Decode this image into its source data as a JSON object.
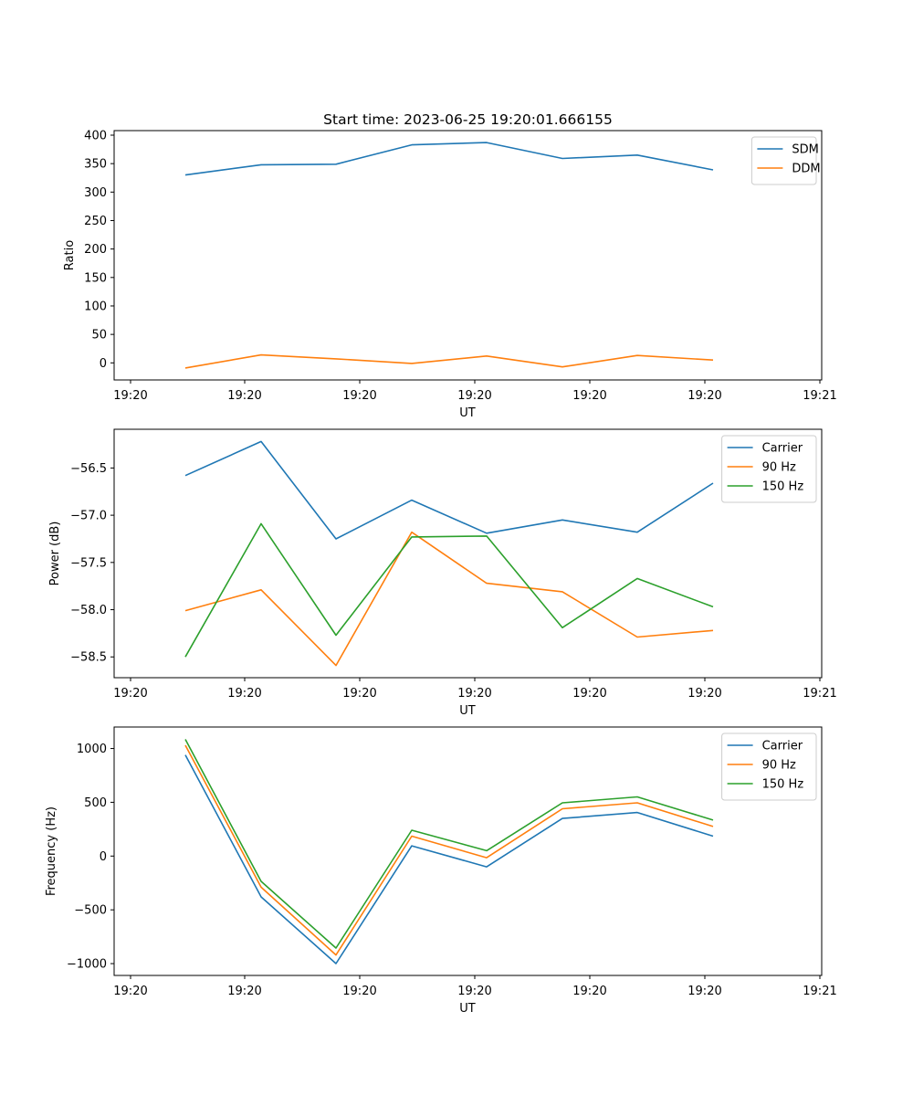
{
  "figure": {
    "title": "Start time: 2023-06-25 19:20:01.666155"
  },
  "colors": {
    "c0": "#1f77b4",
    "c1": "#ff7f0e",
    "c2": "#2ca02c"
  },
  "chart_data": [
    {
      "type": "line",
      "title": "Start time: 2023-06-25 19:20:01.666155",
      "xlabel": "UT",
      "ylabel": "Ratio",
      "xticks": [
        "19:20",
        "19:20",
        "19:20",
        "19:20",
        "19:20",
        "19:20",
        "19:21"
      ],
      "yticks": [
        0,
        50,
        100,
        150,
        200,
        250,
        300,
        350,
        400
      ],
      "ylim": [
        -30,
        408
      ],
      "legend": "top-right",
      "grid": false,
      "series": [
        {
          "name": "SDM",
          "values": [
            330,
            348,
            349,
            383,
            387,
            359,
            365,
            339
          ]
        },
        {
          "name": "DDM",
          "values": [
            -9,
            14,
            7,
            -1,
            12,
            -7,
            13,
            5
          ]
        }
      ]
    },
    {
      "type": "line",
      "xlabel": "UT",
      "ylabel": "Power (dB)",
      "xticks": [
        "19:20",
        "19:20",
        "19:20",
        "19:20",
        "19:20",
        "19:20",
        "19:21"
      ],
      "yticks": [
        -58.5,
        -58.0,
        -57.5,
        -57.0,
        -56.5
      ],
      "ytick_labels": [
        "−58.5",
        "−58.0",
        "−57.5",
        "−57.0",
        "−56.5"
      ],
      "ylim": [
        -58.72,
        -56.09
      ],
      "legend": "top-right",
      "grid": false,
      "series": [
        {
          "name": "Carrier",
          "values": [
            -56.58,
            -56.22,
            -57.25,
            -56.84,
            -57.19,
            -57.05,
            -57.18,
            -56.66
          ]
        },
        {
          "name": "90 Hz",
          "values": [
            -58.01,
            -57.79,
            -58.59,
            -57.18,
            -57.72,
            -57.81,
            -58.29,
            -58.22
          ]
        },
        {
          "name": "150 Hz",
          "values": [
            -58.5,
            -57.09,
            -58.27,
            -57.23,
            -57.22,
            -58.19,
            -57.67,
            -57.97
          ]
        }
      ]
    },
    {
      "type": "line",
      "xlabel": "UT",
      "ylabel": "Frequency (Hz)",
      "xticks": [
        "19:20",
        "19:20",
        "19:20",
        "19:20",
        "19:20",
        "19:20",
        "19:21"
      ],
      "yticks": [
        -1000,
        -500,
        0,
        500,
        1000
      ],
      "ytick_labels": [
        "−1000",
        "−500",
        "0",
        "500",
        "1000"
      ],
      "ylim": [
        -1110,
        1200
      ],
      "legend": "top-right",
      "grid": false,
      "series": [
        {
          "name": "Carrier",
          "values": [
            940,
            -380,
            -1000,
            95,
            -100,
            350,
            405,
            185
          ]
        },
        {
          "name": "90 Hz",
          "values": [
            1030,
            -290,
            -920,
            185,
            -15,
            440,
            495,
            275
          ]
        },
        {
          "name": "150 Hz",
          "values": [
            1085,
            -235,
            -855,
            240,
            50,
            495,
            550,
            335
          ]
        }
      ]
    }
  ]
}
